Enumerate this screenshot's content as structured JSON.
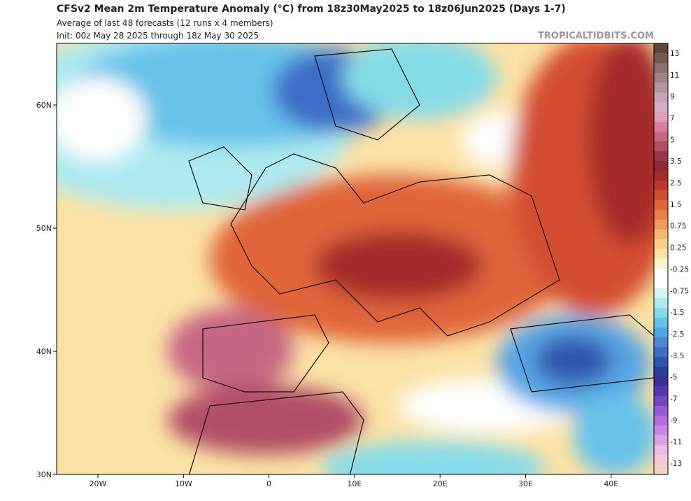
{
  "header": {
    "title": "CFSv2 Mean 2m Temperature Anomaly (°C) from 18z30May2025 to 18z06Jun2025 (Days 1-7)",
    "subtitle": "Average of last 48 forecasts (12 runs x 4 members)",
    "init": "Init: 00z May 28 2025 through 18z May 30 2025",
    "watermark": "TROPICALTIDBITS.COM"
  },
  "map": {
    "lat_labels": [
      "60N",
      "50N",
      "40N",
      "30N"
    ],
    "lon_labels": [
      "20W",
      "10W",
      "0",
      "10E",
      "20E",
      "30E",
      "40E"
    ]
  },
  "colorbar": {
    "labels": [
      "13",
      "11",
      "9",
      "7",
      "5",
      "3.5",
      "2.5",
      "1.5",
      "0.75",
      "0.25",
      "-0.25",
      "-0.75",
      "-1.5",
      "-2.5",
      "-3.5",
      "-5",
      "-7",
      "-9",
      "-11",
      "-13"
    ],
    "colors": [
      "#5e4536",
      "#735a50",
      "#8a6f6a",
      "#a08487",
      "#b595a1",
      "#c8a3b8",
      "#d7aac6",
      "#df9cbc",
      "#d6819f",
      "#c66683",
      "#b24d66",
      "#9c3548",
      "#8e2834",
      "#a52c2c",
      "#c0382c",
      "#d44d30",
      "#e0653a",
      "#ea7f48",
      "#f09a5c",
      "#f5b673",
      "#f9cd8b",
      "#fce2a6",
      "#fff3c8",
      "#ffffff",
      "#ffffff",
      "#d8f5f6",
      "#aeeaf0",
      "#86dbe9",
      "#67c2ea",
      "#56a5e4",
      "#4989d8",
      "#3c6dc8",
      "#3254ae",
      "#2b3e96",
      "#38309a",
      "#5638b0",
      "#7646c6",
      "#9658d6",
      "#b36ddf",
      "#c986e4",
      "#dba0e6",
      "#e9bbe6",
      "#f2cbd6",
      "#f5d3c8"
    ]
  }
}
